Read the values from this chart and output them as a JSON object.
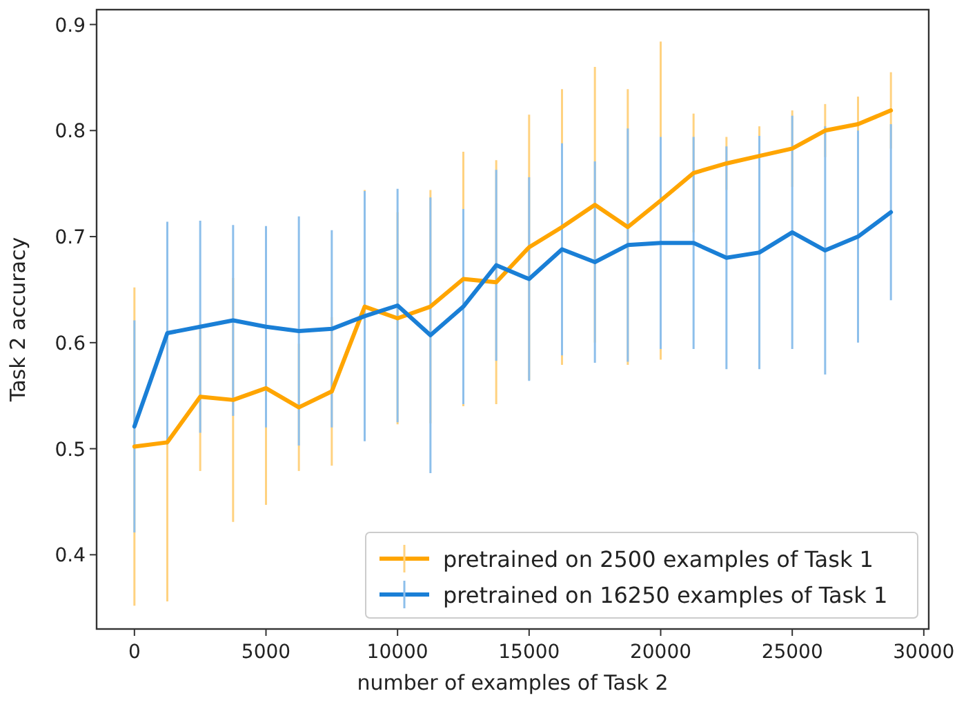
{
  "chart_data": {
    "type": "line",
    "xlabel": "number of examples of Task 2",
    "ylabel": "Task 2 accuracy",
    "x": [
      0,
      1250,
      2500,
      3750,
      5000,
      6250,
      7500,
      8750,
      10000,
      11250,
      12500,
      13750,
      15000,
      16250,
      17500,
      18750,
      20000,
      21250,
      22500,
      23750,
      25000,
      26250,
      27500,
      28750
    ],
    "series": [
      {
        "name": "pretrained on 2500 examples of Task 1",
        "color": "#ffa500",
        "values": [
          0.502,
          0.506,
          0.549,
          0.546,
          0.557,
          0.539,
          0.554,
          0.634,
          0.623,
          0.634,
          0.66,
          0.657,
          0.69,
          0.709,
          0.73,
          0.709,
          0.734,
          0.76,
          0.769,
          0.776,
          0.783,
          0.8,
          0.806,
          0.819
        ],
        "errors": [
          0.15,
          0.15,
          0.07,
          0.115,
          0.11,
          0.06,
          0.07,
          0.11,
          0.1,
          0.11,
          0.12,
          0.115,
          0.125,
          0.13,
          0.13,
          0.13,
          0.15,
          0.056,
          0.025,
          0.028,
          0.036,
          0.025,
          0.026,
          0.036
        ]
      },
      {
        "name": "pretrained on 16250 examples of Task 1",
        "color": "#1a7fd6",
        "values": [
          0.521,
          0.609,
          0.615,
          0.621,
          0.615,
          0.611,
          0.613,
          0.625,
          0.635,
          0.607,
          0.634,
          0.673,
          0.66,
          0.688,
          0.676,
          0.692,
          0.694,
          0.694,
          0.68,
          0.685,
          0.704,
          0.687,
          0.7,
          0.723
        ],
        "errors": [
          0.1,
          0.105,
          0.1,
          0.09,
          0.095,
          0.108,
          0.093,
          0.118,
          0.11,
          0.13,
          0.092,
          0.09,
          0.096,
          0.1,
          0.095,
          0.11,
          0.1,
          0.1,
          0.105,
          0.11,
          0.11,
          0.117,
          0.1,
          0.083
        ]
      }
    ],
    "xlim": [
      -1437.5,
      30187.5
    ],
    "xticks": [
      0,
      5000,
      10000,
      15000,
      20000,
      25000,
      30000
    ],
    "ylim": [
      0.33,
      0.914
    ],
    "yticks": [
      0.4,
      0.5,
      0.6,
      0.7,
      0.8,
      0.9
    ],
    "grid": false,
    "legend": "bottom right",
    "marker": "none",
    "line_style": "solid"
  }
}
